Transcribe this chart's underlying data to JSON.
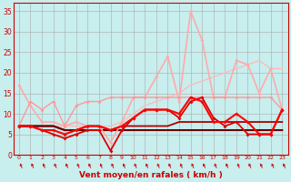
{
  "xlabel": "Vent moyen/en rafales ( km/h )",
  "xlim": [
    -0.5,
    23.5
  ],
  "ylim": [
    0,
    37
  ],
  "yticks": [
    0,
    5,
    10,
    15,
    20,
    25,
    30,
    35
  ],
  "xticks": [
    0,
    1,
    2,
    3,
    4,
    5,
    6,
    7,
    8,
    9,
    10,
    11,
    12,
    13,
    14,
    15,
    16,
    17,
    18,
    19,
    20,
    21,
    22,
    23
  ],
  "bg_color": "#c8eeee",
  "grid_color": "#aaaaaa",
  "x": [
    0,
    1,
    2,
    3,
    4,
    5,
    6,
    7,
    8,
    9,
    10,
    11,
    12,
    13,
    14,
    15,
    16,
    17,
    18,
    19,
    20,
    21,
    22,
    23
  ],
  "series": [
    {
      "y": [
        7,
        7,
        7,
        7,
        7,
        7,
        7,
        7,
        7,
        8,
        10,
        12,
        13,
        14,
        15,
        17,
        18,
        19,
        20,
        21,
        22,
        23,
        21,
        21
      ],
      "color": "#ffbbbb",
      "lw": 1.0,
      "marker": null,
      "ms": 0
    },
    {
      "y": [
        17,
        12,
        8,
        8,
        7,
        8,
        7,
        7,
        3,
        8,
        14,
        14,
        19,
        24,
        13,
        35,
        28,
        14,
        14,
        23,
        22,
        15,
        21,
        11
      ],
      "color": "#ffaaaa",
      "lw": 1.2,
      "marker": "D",
      "ms": 2.0
    },
    {
      "y": [
        7,
        13,
        11,
        13,
        7,
        12,
        13,
        13,
        14,
        14,
        14,
        14,
        14,
        14,
        14,
        14,
        14,
        14,
        14,
        14,
        14,
        14,
        14,
        11
      ],
      "color": "#ff9999",
      "lw": 1.0,
      "marker": "D",
      "ms": 2.0
    },
    {
      "y": [
        7,
        7,
        6,
        5,
        4,
        5,
        6,
        6,
        1,
        6,
        9,
        11,
        11,
        11,
        9,
        13,
        14,
        9,
        7,
        8,
        5,
        5,
        5,
        11
      ],
      "color": "#dd0000",
      "lw": 1.3,
      "marker": "D",
      "ms": 2.0
    },
    {
      "y": [
        7,
        7,
        6,
        6,
        5,
        6,
        7,
        7,
        6,
        7,
        9,
        11,
        11,
        11,
        10,
        14,
        13,
        8,
        8,
        10,
        8,
        5,
        5,
        11
      ],
      "color": "#ff0000",
      "lw": 1.5,
      "marker": "D",
      "ms": 2.0
    },
    {
      "y": [
        7,
        7,
        7,
        7,
        6,
        6,
        7,
        7,
        6,
        7,
        7,
        7,
        7,
        7,
        8,
        8,
        8,
        8,
        8,
        8,
        8,
        8,
        8,
        8
      ],
      "color": "#aa0000",
      "lw": 1.3,
      "marker": null,
      "ms": 0
    },
    {
      "y": [
        7,
        7,
        7,
        7,
        6,
        6,
        6,
        6,
        6,
        6,
        6,
        6,
        6,
        6,
        6,
        6,
        6,
        6,
        6,
        6,
        6,
        6,
        6,
        6
      ],
      "color": "#660000",
      "lw": 1.5,
      "marker": null,
      "ms": 0
    }
  ],
  "arrow_color": "#cc0000",
  "tick_color": "#cc0000",
  "label_color": "#cc0000",
  "axis_color": "#cc0000"
}
